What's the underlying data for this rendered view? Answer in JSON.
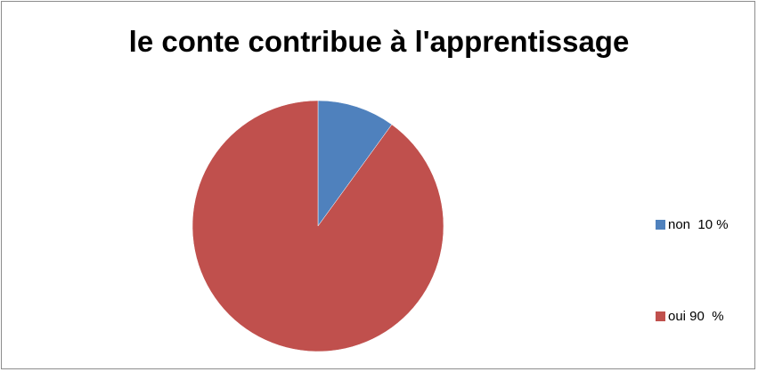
{
  "chart_data": {
    "type": "pie",
    "title": "le conte contribue à l'apprentissage",
    "categories": [
      "non  10 %",
      "oui 90  %"
    ],
    "values": [
      10,
      90
    ],
    "colors": [
      "#4F81BD",
      "#C0504D"
    ],
    "legend": {
      "position": "right",
      "items": [
        {
          "label": "non  10 %",
          "color": "#4F81BD"
        },
        {
          "label": "oui 90  %",
          "color": "#C0504D"
        }
      ]
    }
  }
}
